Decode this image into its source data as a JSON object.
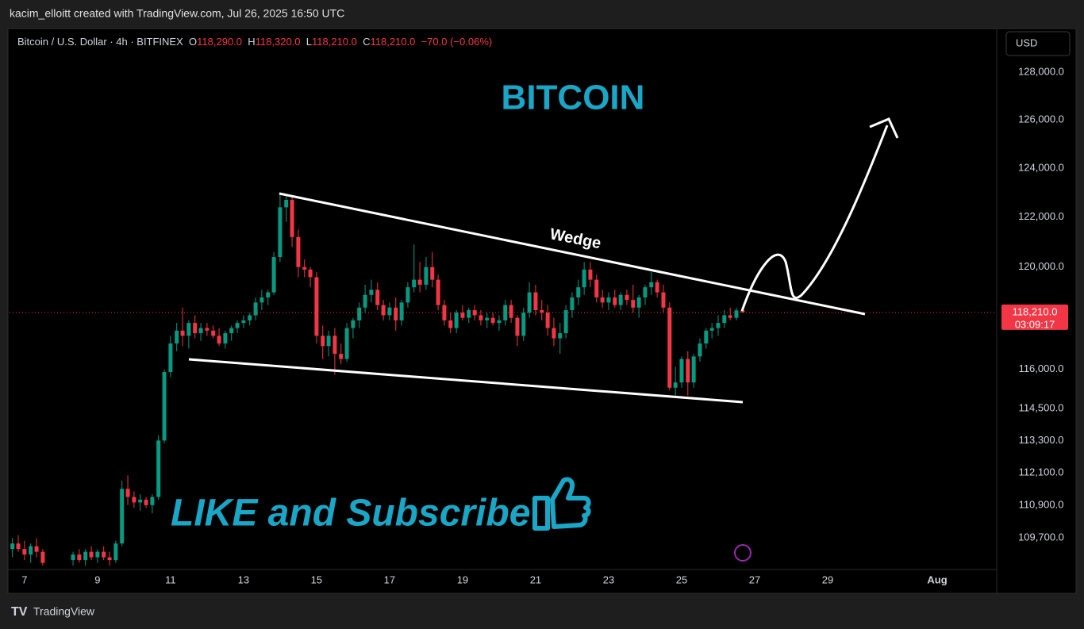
{
  "header": {
    "attribution": "kacim_elloitt created with TradingView.com, Jul 26, 2025 16:50 UTC",
    "symbol": "Bitcoin / U.S. Dollar · 4h · BITFINEX",
    "open_label": "O",
    "open": "118,290.0",
    "high_label": "H",
    "high": "118,320.0",
    "low_label": "L",
    "low": "118,210.0",
    "close_label": "C",
    "close": "118,210.0",
    "change": "−70.0 (−0.06%)"
  },
  "footer": {
    "brand": "TradingView"
  },
  "chart_data": {
    "type": "candlestick",
    "currency": "USD",
    "log": true,
    "up_color": "#089981",
    "down_color": "#f23645",
    "xlim": [
      6.59,
      33.63
    ],
    "ylim": [
      108560,
      129730
    ],
    "yticks": [
      {
        "value": 128000,
        "label": "128,000.0"
      },
      {
        "value": 126000,
        "label": "126,000.0"
      },
      {
        "value": 124000,
        "label": "124,000.0"
      },
      {
        "value": 122000,
        "label": "122,000.0"
      },
      {
        "value": 120000,
        "label": "120,000.0"
      },
      {
        "value": 116000,
        "label": "116,000.0"
      },
      {
        "value": 114500,
        "label": "114,500.0"
      },
      {
        "value": 113300,
        "label": "113,300.0"
      },
      {
        "value": 112100,
        "label": "112,100.0"
      },
      {
        "value": 110900,
        "label": "110,900.0"
      },
      {
        "value": 109700,
        "label": "109,700.0"
      }
    ],
    "xticks": [
      7,
      9,
      11,
      13,
      15,
      17,
      19,
      21,
      23,
      25,
      27,
      29,
      {
        "value": 32,
        "label": "Aug"
      }
    ],
    "last_price_label": "118,210.0",
    "countdown": "03:09:17",
    "annotations": {
      "title": "BITCOIN",
      "pattern": "Wedge",
      "cta": "LIKE and Subscribe"
    },
    "series": [
      {
        "x": [
          6.67,
          6.83,
          7,
          7.17,
          7.33,
          7.5,
          8.33,
          8.5,
          8.67,
          8.83,
          9,
          9.17,
          9.33,
          9.5,
          9.67,
          9.83,
          10,
          10.17,
          10.33,
          10.5,
          10.67,
          10.83,
          11,
          11.17,
          11.33,
          11.5,
          11.67,
          11.83,
          12,
          12.17,
          12.33,
          12.5,
          12.67,
          12.83,
          13,
          13.17,
          13.33,
          13.5,
          13.67,
          13.83,
          14,
          14.17,
          14.33,
          14.5,
          14.67,
          14.83,
          15,
          15.17,
          15.33,
          15.5,
          15.67,
          15.83,
          16,
          16.17,
          16.33,
          16.5,
          16.67,
          16.83,
          17,
          17.17,
          17.33,
          17.5,
          17.67,
          17.83,
          18,
          18.17,
          18.33,
          18.5,
          18.67,
          18.83,
          19,
          19.17,
          19.33,
          19.5,
          19.67,
          19.83,
          20,
          20.17,
          20.33,
          20.5,
          20.67,
          20.83,
          21,
          21.17,
          21.33,
          21.5,
          21.67,
          21.83,
          22,
          22.17,
          22.33,
          22.5,
          22.67,
          22.83,
          23,
          23.17,
          23.33,
          23.5,
          23.67,
          23.83,
          24,
          24.17,
          24.33,
          24.5,
          24.67,
          24.83,
          25,
          25.17,
          25.33,
          25.5,
          25.67,
          25.83,
          26,
          26.17,
          26.33,
          26.5,
          26.67
        ],
        "open": [
          109300,
          109500,
          109300,
          109100,
          109400,
          109200,
          108900,
          109100,
          108900,
          109200,
          109000,
          109200,
          109000,
          108900,
          109500,
          111500,
          111200,
          111000,
          111100,
          110900,
          111200,
          113300,
          115900,
          117000,
          117500,
          117300,
          117800,
          117400,
          117600,
          117500,
          117300,
          117000,
          117400,
          117600,
          117800,
          117900,
          118100,
          118600,
          118800,
          119000,
          120400,
          122400,
          122700,
          121200,
          120000,
          119900,
          119600,
          117300,
          116900,
          117300,
          116600,
          116400,
          117600,
          117900,
          118400,
          118900,
          119100,
          118500,
          118100,
          118400,
          117900,
          118600,
          119200,
          119500,
          119300,
          120000,
          119500,
          118500,
          117900,
          117600,
          118200,
          118000,
          118300,
          118100,
          117900,
          118000,
          117800,
          117900,
          118500,
          118000,
          117300,
          118200,
          119000,
          118300,
          118200,
          117600,
          117200,
          117400,
          118300,
          118800,
          119200,
          119900,
          119500,
          118800,
          118600,
          118800,
          118500,
          118900,
          118700,
          118400,
          118800,
          119200,
          119400,
          119000,
          118400,
          115300,
          115500,
          116400,
          115500,
          116500,
          117000,
          117500,
          117600,
          117800,
          118100,
          118000,
          118290
        ],
        "high": [
          109700,
          109800,
          109600,
          109500,
          109700,
          109300,
          109200,
          109300,
          109300,
          109400,
          109300,
          109400,
          109200,
          109600,
          111800,
          112000,
          111400,
          111300,
          111200,
          111300,
          113500,
          116000,
          117300,
          117800,
          118400,
          117900,
          118100,
          117800,
          117800,
          117700,
          117600,
          117500,
          117700,
          117900,
          118100,
          118200,
          118800,
          119100,
          119100,
          120600,
          123000,
          122900,
          122800,
          121500,
          120300,
          120000,
          119800,
          117700,
          117500,
          117600,
          117000,
          117800,
          118000,
          118600,
          119300,
          119500,
          119400,
          118700,
          118600,
          118800,
          118700,
          119400,
          120900,
          120200,
          120400,
          120600,
          119700,
          118700,
          118200,
          118300,
          118500,
          118400,
          118500,
          118300,
          118200,
          118200,
          118100,
          118700,
          118700,
          118100,
          118400,
          119400,
          119300,
          118700,
          118500,
          118000,
          117800,
          118500,
          119000,
          119500,
          120200,
          120200,
          119700,
          119100,
          119000,
          119100,
          119000,
          119100,
          119300,
          118900,
          119300,
          119800,
          119500,
          119300,
          118600,
          116100,
          116500,
          116700,
          116600,
          117200,
          117600,
          117800,
          118100,
          118300,
          118400,
          118400,
          118320
        ],
        "low": [
          109000,
          109200,
          108900,
          108800,
          109000,
          108700,
          108700,
          108800,
          108700,
          108900,
          108800,
          108900,
          108700,
          108800,
          109400,
          110900,
          110800,
          110700,
          110800,
          110600,
          111100,
          113200,
          115700,
          116700,
          116900,
          116800,
          117200,
          117100,
          117300,
          117200,
          116900,
          116800,
          117100,
          117400,
          117600,
          117700,
          117900,
          118300,
          118500,
          118900,
          120200,
          121800,
          120800,
          119600,
          119600,
          119200,
          117000,
          116400,
          116500,
          115800,
          116200,
          116300,
          117200,
          117600,
          118200,
          118600,
          118300,
          117900,
          117900,
          117500,
          117700,
          118400,
          119000,
          119000,
          119100,
          119200,
          118300,
          117700,
          117400,
          117400,
          117900,
          117800,
          117900,
          117700,
          117600,
          117700,
          117500,
          117700,
          117800,
          116900,
          117100,
          118000,
          118100,
          117900,
          117300,
          116900,
          116600,
          117200,
          118000,
          118500,
          118900,
          119200,
          118600,
          118400,
          118300,
          118400,
          118300,
          118500,
          118200,
          118000,
          118500,
          118900,
          118800,
          118200,
          115200,
          114900,
          115300,
          115000,
          115300,
          116300,
          116800,
          117200,
          117300,
          117600,
          117900,
          117900,
          118210
        ],
        "close": [
          109500,
          109300,
          109100,
          109400,
          109200,
          108800,
          109100,
          108900,
          109200,
          109000,
          109200,
          109000,
          108900,
          109500,
          111500,
          111200,
          111000,
          111100,
          110900,
          111200,
          113300,
          115900,
          117000,
          117500,
          117300,
          117800,
          117400,
          117600,
          117500,
          117300,
          117000,
          117400,
          117600,
          117800,
          117900,
          118100,
          118600,
          118800,
          119000,
          120400,
          122400,
          122700,
          121200,
          120000,
          119900,
          119600,
          117300,
          116900,
          117300,
          116600,
          116400,
          117600,
          117900,
          118400,
          118900,
          119100,
          118500,
          118100,
          118400,
          117900,
          118600,
          119200,
          119500,
          119300,
          120000,
          119500,
          118500,
          117900,
          117600,
          118200,
          118000,
          118300,
          118100,
          117900,
          118000,
          117800,
          117900,
          118500,
          118000,
          117300,
          118200,
          119000,
          118300,
          118200,
          117600,
          117200,
          117400,
          118300,
          118800,
          119200,
          119900,
          119500,
          118800,
          118600,
          118800,
          118500,
          118900,
          118700,
          118400,
          118800,
          119200,
          119400,
          119000,
          118400,
          115300,
          115500,
          116400,
          115500,
          116500,
          117000,
          117500,
          117600,
          117800,
          118100,
          118000,
          118290,
          118210
        ]
      }
    ]
  }
}
